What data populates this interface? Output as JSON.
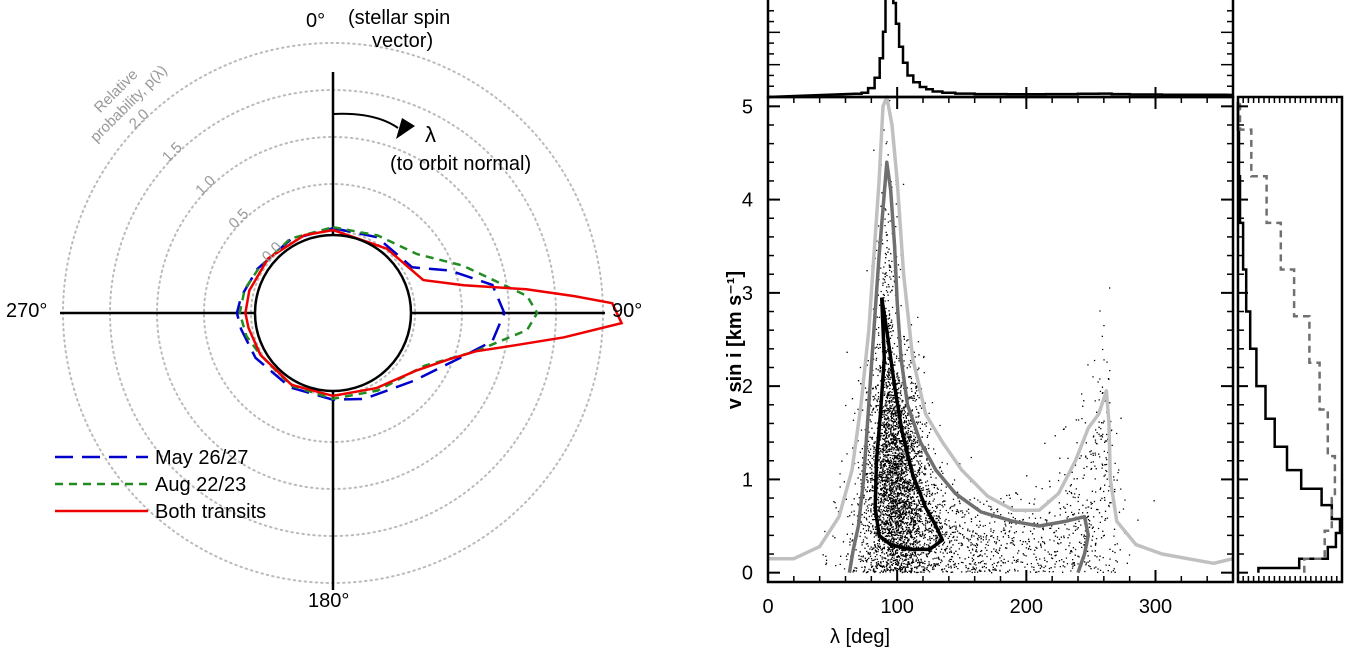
{
  "chart_data": [
    {
      "type": "polar-line",
      "angle_labels": {
        "top": "0°",
        "right": "90°",
        "bottom": "180°",
        "left": "270°"
      },
      "top_annotation": "(stellar spin\nvector)",
      "lambda_label": "λ",
      "lambda_annotation": "(to orbit normal)",
      "radial_title": "Relative\nprobability, p(λ)",
      "radial_ticks": [
        "0.0",
        "0.5",
        "1.0",
        "1.5",
        "2.0"
      ],
      "radial_tick_values": [
        0.0,
        0.5,
        1.0,
        1.5,
        2.0
      ],
      "radial_max": 2.7,
      "grid": true,
      "legend_position": "bottom-left",
      "series": [
        {
          "name": "May 26/27",
          "color": "#0000cc",
          "dash": "long-dash",
          "theta_deg": [
            0,
            30,
            60,
            70,
            80,
            90,
            100,
            110,
            130,
            160,
            180,
            210,
            240,
            260,
            270,
            280,
            300,
            330,
            360
          ],
          "value": [
            0.03,
            0.06,
            0.1,
            0.45,
            0.85,
            0.95,
            0.85,
            0.55,
            0.25,
            0.1,
            0.05,
            0.04,
            0.08,
            0.12,
            0.15,
            0.12,
            0.06,
            0.03,
            0.03
          ]
        },
        {
          "name": "Aug 22/23",
          "color": "#228b22",
          "dash": "short-dash",
          "theta_deg": [
            0,
            30,
            55,
            70,
            85,
            90,
            95,
            105,
            120,
            150,
            180,
            210,
            240,
            255,
            270,
            285,
            300,
            330,
            360
          ],
          "value": [
            0.04,
            0.08,
            0.22,
            0.6,
            1.2,
            1.3,
            1.2,
            0.7,
            0.25,
            0.08,
            0.04,
            0.02,
            0.02,
            0.08,
            0.12,
            0.1,
            0.05,
            0.04,
            0.04
          ]
        },
        {
          "name": "Both transits",
          "color": "#ee0000",
          "dash": "solid",
          "theta_deg": [
            0,
            40,
            70,
            78,
            83,
            86,
            88,
            92,
            96,
            100,
            105,
            112,
            125,
            150,
            180,
            210,
            240,
            260,
            270,
            285,
            310,
            340,
            360
          ],
          "value": [
            0.01,
            0.02,
            0.15,
            0.55,
            1.2,
            1.7,
            2.1,
            2.2,
            1.6,
            1.1,
            0.7,
            0.45,
            0.2,
            0.05,
            0.01,
            0.01,
            0.02,
            0.04,
            0.06,
            0.05,
            0.03,
            0.01,
            0.01
          ]
        }
      ]
    },
    {
      "type": "scatter",
      "xlabel": "λ [deg]",
      "ylabel": "v sin i  [km s⁻¹]",
      "xlim": [
        0,
        360
      ],
      "ylim": [
        -0.1,
        5.1
      ],
      "x_ticks": [
        0,
        100,
        200,
        300
      ],
      "y_ticks": [
        0,
        1,
        2,
        3,
        4,
        5
      ],
      "contours": [
        {
          "color": "#000000",
          "points": [
            [
              88,
              2.95
            ],
            [
              90,
              2.3
            ],
            [
              87,
              1.7
            ],
            [
              84,
              1.2
            ],
            [
              83,
              0.7
            ],
            [
              86,
              0.4
            ],
            [
              95,
              0.3
            ],
            [
              110,
              0.25
            ],
            [
              125,
              0.25
            ],
            [
              135,
              0.35
            ],
            [
              130,
              0.5
            ],
            [
              122,
              0.7
            ],
            [
              112,
              1.05
            ],
            [
              104,
              1.5
            ],
            [
              98,
              2.0
            ],
            [
              93,
              2.5
            ],
            [
              88,
              2.95
            ]
          ]
        },
        {
          "color": "#707070",
          "points": [
            [
              63,
              0.0
            ],
            [
              66,
              0.25
            ],
            [
              70,
              0.5
            ],
            [
              74,
              1.0
            ],
            [
              77,
              1.6
            ],
            [
              80,
              2.2
            ],
            [
              83,
              2.8
            ],
            [
              86,
              3.4
            ],
            [
              89,
              3.9
            ],
            [
              92,
              4.4
            ],
            [
              95,
              4.1
            ],
            [
              98,
              3.5
            ],
            [
              100,
              2.9
            ],
            [
              103,
              2.3
            ],
            [
              108,
              1.8
            ],
            [
              118,
              1.4
            ],
            [
              130,
              1.1
            ],
            [
              145,
              0.85
            ],
            [
              165,
              0.65
            ],
            [
              190,
              0.55
            ],
            [
              210,
              0.5
            ],
            [
              230,
              0.55
            ],
            [
              245,
              0.6
            ],
            [
              248,
              0.4
            ],
            [
              245,
              0.2
            ],
            [
              240,
              0.0
            ]
          ]
        },
        {
          "color": "#c0c0c0",
          "points": [
            [
              0,
              0.15
            ],
            [
              20,
              0.15
            ],
            [
              40,
              0.28
            ],
            [
              55,
              0.6
            ],
            [
              65,
              1.1
            ],
            [
              72,
              1.8
            ],
            [
              78,
              2.6
            ],
            [
              82,
              3.4
            ],
            [
              86,
              4.2
            ],
            [
              89,
              5.0
            ],
            [
              92,
              5.1
            ],
            [
              96,
              4.8
            ],
            [
              100,
              4.2
            ],
            [
              105,
              3.2
            ],
            [
              112,
              2.3
            ],
            [
              122,
              1.7
            ],
            [
              135,
              1.4
            ],
            [
              150,
              1.1
            ],
            [
              170,
              0.82
            ],
            [
              190,
              0.67
            ],
            [
              210,
              0.67
            ],
            [
              225,
              0.85
            ],
            [
              238,
              1.2
            ],
            [
              248,
              1.55
            ],
            [
              256,
              1.7
            ],
            [
              262,
              1.95
            ],
            [
              264,
              1.6
            ],
            [
              265,
              1.0
            ],
            [
              270,
              0.55
            ],
            [
              285,
              0.3
            ],
            [
              305,
              0.2
            ],
            [
              325,
              0.15
            ],
            [
              345,
              0.1
            ],
            [
              360,
              0.15
            ]
          ]
        }
      ],
      "scatter_density": [
        {
          "x_center": 98,
          "y_center": 1.1,
          "x_sd": 11,
          "y_sd": 0.6,
          "n": 2600
        },
        {
          "x_center": 105,
          "y_center": 0.5,
          "x_sd": 22,
          "y_sd": 0.35,
          "n": 900
        },
        {
          "x_center": 160,
          "y_center": 0.3,
          "x_sd": 45,
          "y_sd": 0.25,
          "n": 700
        },
        {
          "x_center": 92,
          "y_center": 2.6,
          "x_sd": 5,
          "y_sd": 0.9,
          "n": 300
        },
        {
          "x_center": 245,
          "y_center": 0.6,
          "x_sd": 15,
          "y_sd": 0.5,
          "n": 250
        },
        {
          "x_center": 258,
          "y_center": 1.4,
          "x_sd": 5,
          "y_sd": 0.5,
          "n": 80
        }
      ]
    },
    {
      "type": "histogram",
      "orientation": "vertical",
      "axis": "λ [deg]",
      "xlim": [
        0,
        360
      ],
      "bin_centers": [
        70,
        75,
        80,
        85,
        88,
        90,
        92,
        94,
        96,
        98,
        100,
        103,
        106,
        110,
        115,
        120,
        125,
        130,
        140,
        150,
        170,
        200,
        230,
        250,
        262,
        270,
        290,
        320,
        350
      ],
      "relative_heights": [
        0.01,
        0.02,
        0.06,
        0.15,
        0.32,
        0.55,
        0.85,
        1.0,
        0.96,
        0.8,
        0.62,
        0.42,
        0.28,
        0.17,
        0.11,
        0.07,
        0.05,
        0.03,
        0.02,
        0.012,
        0.008,
        0.006,
        0.008,
        0.01,
        0.012,
        0.008,
        0.004,
        0.002,
        0.002
      ]
    },
    {
      "type": "histogram",
      "orientation": "horizontal",
      "axis": "v sin i  [km s⁻¹]",
      "ylim": [
        -0.1,
        5.1
      ],
      "series": [
        {
          "name": "",
          "color": "#000000",
          "dash": "solid",
          "y": [
            0.0,
            0.1,
            0.2,
            0.35,
            0.5,
            0.65,
            0.8,
            1.0,
            1.2,
            1.5,
            1.8,
            2.2,
            2.6,
            3.0,
            3.5,
            4.0,
            4.5,
            5.0
          ],
          "relative_widths": [
            0.2,
            0.6,
            0.88,
            0.96,
            1.0,
            0.92,
            0.82,
            0.62,
            0.48,
            0.36,
            0.27,
            0.18,
            0.12,
            0.08,
            0.05,
            0.02,
            0.01,
            0.0
          ]
        },
        {
          "name": "",
          "color": "#707070",
          "dash": "dashed",
          "y": [
            0.0,
            0.3,
            0.6,
            1.0,
            1.5,
            2.0,
            2.5,
            3.0,
            3.5,
            4.0,
            4.5,
            5.0
          ],
          "relative_widths": [
            0.65,
            0.85,
            0.92,
            0.95,
            0.88,
            0.8,
            0.7,
            0.55,
            0.42,
            0.28,
            0.13,
            0.02
          ]
        }
      ]
    }
  ]
}
